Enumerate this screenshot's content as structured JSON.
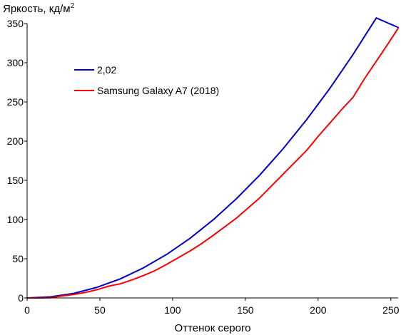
{
  "chart_data": {
    "type": "line",
    "ylabel": "Яркость, кд/м",
    "ylabel_sup": "2",
    "xlabel": "Оттенок серого",
    "xlim": [
      0,
      255
    ],
    "ylim": [
      0,
      350
    ],
    "x_ticks": [
      0,
      50,
      100,
      150,
      200,
      250
    ],
    "y_ticks": [
      0,
      50,
      100,
      150,
      200,
      250,
      300,
      350
    ],
    "grid": false,
    "legend_position": "top-left",
    "series": [
      {
        "name": "2,02",
        "color": "#0000cc",
        "x": [
          0,
          16,
          32,
          48,
          64,
          80,
          96,
          112,
          128,
          144,
          160,
          176,
          192,
          208,
          224,
          240,
          255
        ],
        "y": [
          0,
          1.4,
          5.8,
          13.5,
          24.3,
          38.4,
          55.6,
          76.1,
          99.8,
          126.8,
          157.0,
          190.5,
          227.2,
          267.2,
          310.5,
          357.1,
          345.0
        ]
      },
      {
        "name": "Samsung Galaxy A7 (2018)",
        "color": "#ff0000",
        "x": [
          0,
          8,
          16,
          24,
          32,
          40,
          48,
          56,
          64,
          72,
          80,
          88,
          96,
          104,
          112,
          120,
          128,
          136,
          144,
          152,
          160,
          168,
          176,
          184,
          192,
          200,
          208,
          216,
          224,
          232,
          240,
          248,
          255
        ],
        "y": [
          0,
          0,
          0.3,
          2.5,
          4.5,
          7,
          10.5,
          15,
          18,
          23,
          28.5,
          35,
          43,
          51.5,
          60,
          69.5,
          80,
          91,
          102,
          115,
          128,
          143,
          158,
          173,
          188,
          206,
          223,
          240,
          256,
          280,
          302,
          324,
          344
        ]
      }
    ]
  }
}
